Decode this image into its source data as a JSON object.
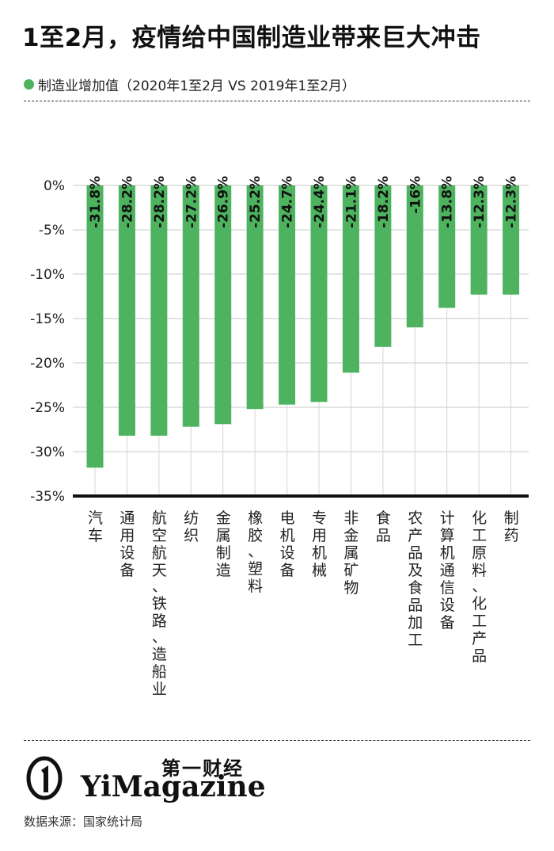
{
  "title": "1至2月，疫情给中国制造业带来巨大冲击",
  "legend": {
    "label": "制造业增加值（2020年1至2月 VS 2019年1至2月）",
    "color": "#4db35e"
  },
  "logo": {
    "cn": "第一财经",
    "en": "YiMagazine"
  },
  "source": "数据来源：国家统计局",
  "chart_data": {
    "type": "bar",
    "orientation": "vertical",
    "categories": [
      "汽车",
      "通用设备",
      "航空航天、铁路、造船业",
      "纺织",
      "金属制造",
      "橡胶、塑料",
      "电机设备",
      "专用机械",
      "非金属矿物",
      "食品",
      "农产品及食品加工",
      "计算机通信设备",
      "化工原料、化工产品",
      "制药"
    ],
    "values": [
      -31.8,
      -28.2,
      -28.2,
      -27.2,
      -26.9,
      -25.2,
      -24.7,
      -24.4,
      -21.1,
      -18.2,
      -16,
      -13.8,
      -12.3,
      -12.3
    ],
    "value_labels": [
      "-31.8%",
      "-28.2%",
      "-28.2%",
      "-27.2%",
      "-26.9%",
      "-25.2%",
      "-24.7%",
      "-24.4%",
      "-21.1%",
      "-18.2%",
      "-16%",
      "-13.8%",
      "-12.3%",
      "-12.3%"
    ],
    "yticks": [
      "0%",
      "-5%",
      "-10%",
      "-15%",
      "-20%",
      "-25%",
      "-30%",
      "-35%"
    ],
    "ytick_values": [
      0,
      -5,
      -10,
      -15,
      -20,
      -25,
      -30,
      -35
    ],
    "ylim": [
      -35,
      0
    ],
    "grid": true,
    "bar_color": "#4db35e"
  }
}
